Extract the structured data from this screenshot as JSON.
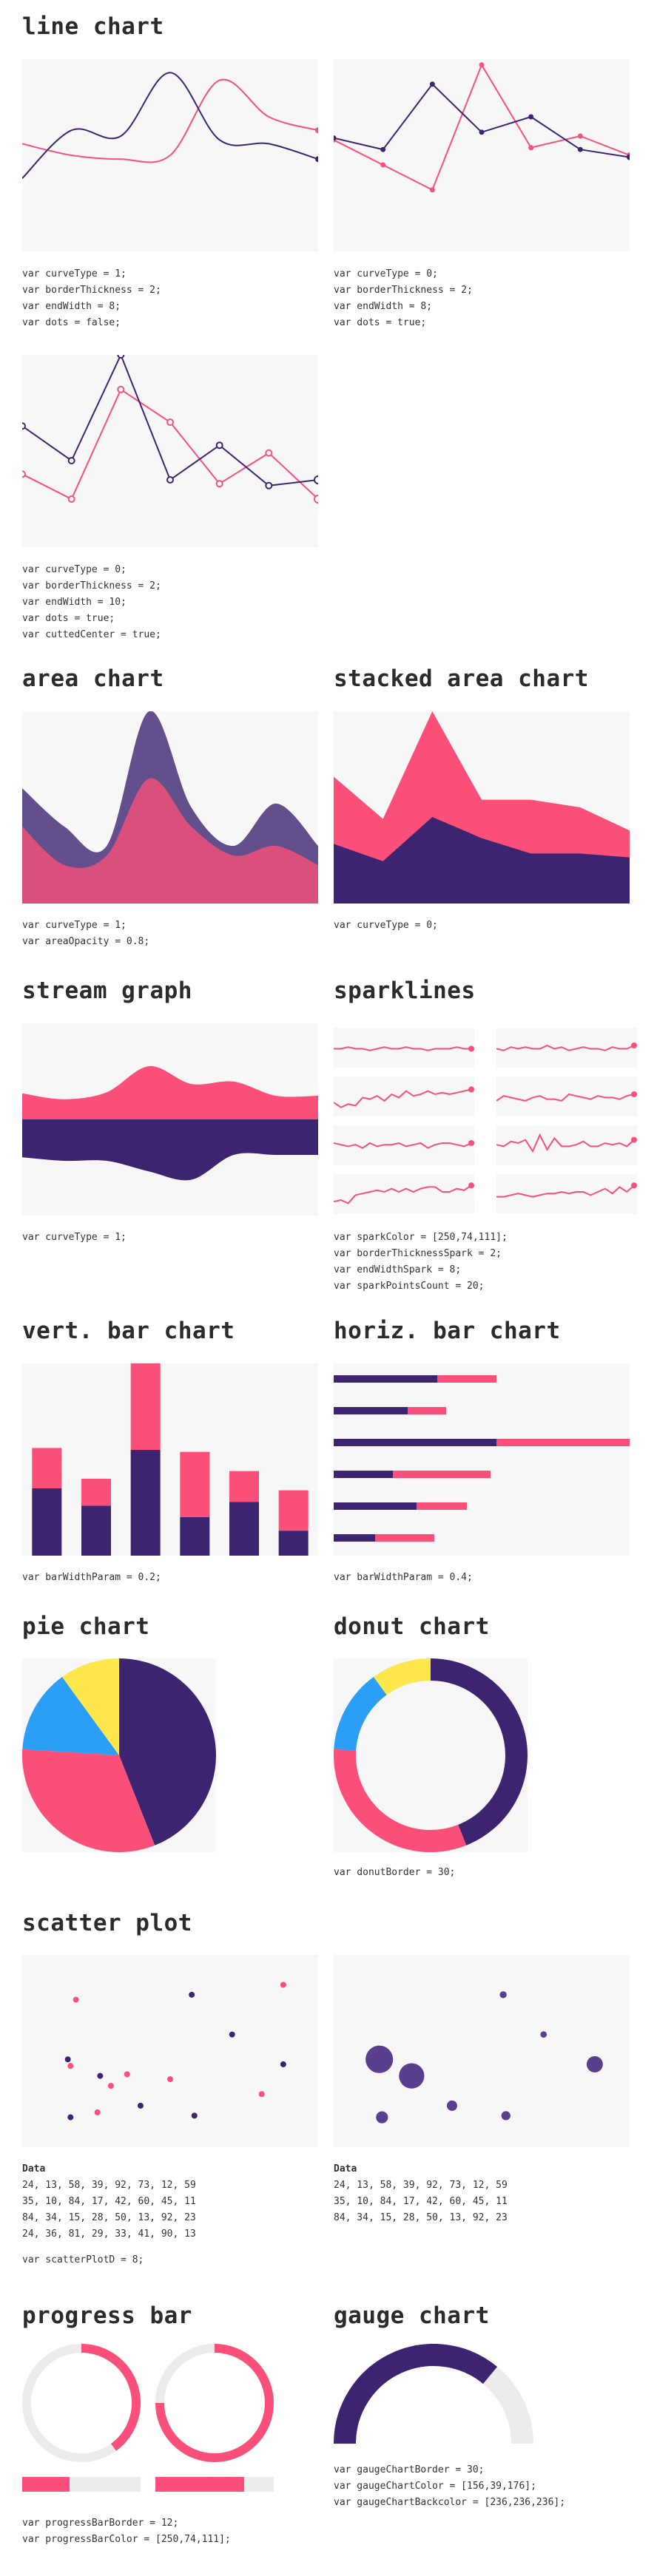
{
  "colors": {
    "pink": "#f94f78",
    "purple": "#3d2470",
    "panel": "#f7f7f7",
    "blue": "#2a9ff5",
    "yellow": "#fde74c",
    "gray": "#ececec",
    "purple_alpha": "#5b3f8f"
  },
  "sections": {
    "line_chart": {
      "title": "line chart",
      "code1": [
        "var curveType = 1;",
        "var borderThickness = 2;",
        "var endWidth = 8;",
        "var dots = false;"
      ],
      "code2": [
        "var curveType = 0;",
        "var borderThickness = 2;",
        "var endWidth = 8;",
        "var dots = true;"
      ],
      "code3": [
        "var curveType = 0;",
        "var borderThickness = 2;",
        "var endWidth = 10;",
        "var dots = true;",
        "var cuttedCenter = true;"
      ]
    },
    "area_chart": {
      "title": "area chart",
      "code": [
        "var curveType = 1;",
        "var areaOpacity = 0.8;"
      ]
    },
    "stacked_area_chart": {
      "title": "stacked area chart",
      "code": [
        "var curveType = 0;"
      ]
    },
    "stream_graph": {
      "title": "stream graph",
      "code": [
        "var curveType = 1;"
      ]
    },
    "sparklines": {
      "title": "sparklines",
      "code": [
        "var sparkColor = [250,74,111];",
        "var borderThicknessSpark = 2;",
        "var endWidthSpark = 8;",
        "var sparkPointsCount = 20;"
      ]
    },
    "vert_bar_chart": {
      "title": "vert. bar chart",
      "code": [
        "var barWidthParam = 0.2;"
      ]
    },
    "horiz_bar_chart": {
      "title": "horiz. bar chart",
      "code": [
        "var barWidthParam = 0.4;"
      ]
    },
    "pie_chart": {
      "title": "pie chart"
    },
    "donut_chart": {
      "title": "donut chart",
      "code": [
        "var donutBorder = 30;"
      ]
    },
    "scatter_plot": {
      "title": "scatter plot",
      "data_label": "Data",
      "data1": [
        "24, 13, 58, 39, 92, 73, 12, 59",
        "35, 10, 84, 17, 42, 60, 45, 11",
        "84, 34, 15, 28, 50, 13, 92, 23",
        "24, 36, 81, 29, 33, 41, 90, 13"
      ],
      "code1": [
        "var scatterPlotD = 8;"
      ],
      "data2": [
        "24, 13, 58, 39, 92, 73, 12, 59",
        "35, 10, 84, 17, 42, 60, 45, 11",
        "84, 34, 15, 28, 50, 13, 92, 23"
      ]
    },
    "progress_bar": {
      "title": "progress bar",
      "code": [
        "var progressBarBorder = 12;",
        "var progressBarColor = [250,74,111];"
      ]
    },
    "gauge_chart": {
      "title": "gauge chart",
      "code": [
        "var gaugeChartBorder = 30;",
        "var gaugeChartColor = [156,39,176];",
        "var gaugeChartBackcolor = [236,236,236];"
      ]
    }
  },
  "chart_data": [
    {
      "type": "line",
      "id": "line1",
      "x": [
        0,
        1,
        2,
        3,
        4,
        5,
        6
      ],
      "series": [
        {
          "values": [
            56,
            50,
            48,
            50,
            89,
            70,
            63
          ]
        },
        {
          "values": [
            38,
            63,
            60,
            93,
            58,
            56,
            48
          ]
        }
      ]
    },
    {
      "type": "line",
      "id": "line2",
      "x": [
        0,
        1,
        2,
        3,
        4,
        5,
        6
      ],
      "series": [
        {
          "values": [
            58,
            45,
            32,
            97,
            54,
            60,
            50
          ]
        },
        {
          "values": [
            59,
            53,
            87,
            62,
            70,
            53,
            49
          ]
        }
      ]
    },
    {
      "type": "line",
      "id": "line3",
      "x": [
        0,
        1,
        2,
        3,
        4,
        5,
        6
      ],
      "series": [
        {
          "values": [
            38,
            25,
            82,
            65,
            33,
            49,
            25
          ]
        },
        {
          "values": [
            63,
            45,
            100,
            35,
            53,
            32,
            35
          ]
        }
      ]
    },
    {
      "type": "area",
      "id": "area",
      "x": [
        0,
        1,
        2,
        3,
        4,
        5,
        6,
        7
      ],
      "series": [
        {
          "values": [
            40,
            20,
            25,
            65,
            40,
            25,
            30,
            20
          ]
        },
        {
          "values": [
            60,
            40,
            30,
            100,
            50,
            30,
            52,
            30
          ]
        }
      ]
    },
    {
      "type": "area",
      "id": "stacked",
      "x": [
        0,
        1,
        2,
        3,
        4,
        5,
        6
      ],
      "series": [
        {
          "values": [
            35,
            22,
            55,
            20,
            28,
            24,
            14
          ]
        },
        {
          "values": [
            31,
            22,
            45,
            34,
            26,
            26,
            24
          ]
        }
      ]
    },
    {
      "type": "area",
      "id": "stream",
      "x": [
        0,
        1,
        2,
        3,
        4,
        5,
        6,
        7
      ],
      "series": [
        {
          "values": [
            22,
            17,
            23,
            45,
            30,
            32,
            20,
            20
          ]
        },
        {
          "values": [
            32,
            35,
            35,
            44,
            51,
            30,
            30,
            30
          ]
        }
      ]
    },
    {
      "type": "line",
      "id": "sparklines",
      "series": [
        {
          "values": [
            8,
            8,
            9,
            8,
            8,
            7,
            8,
            9,
            8,
            8,
            9,
            8,
            8,
            7,
            8,
            8,
            8,
            9,
            8,
            8
          ]
        },
        {
          "values": [
            8,
            7,
            9,
            8,
            9,
            8,
            8,
            10,
            8,
            9,
            7,
            8,
            9,
            8,
            8,
            7,
            9,
            8,
            8,
            10
          ]
        },
        {
          "values": [
            5,
            2,
            4,
            3,
            8,
            7,
            9,
            6,
            10,
            8,
            12,
            9,
            10,
            12,
            10,
            11,
            10,
            11,
            12,
            13
          ]
        },
        {
          "values": [
            6,
            9,
            8,
            7,
            6,
            8,
            9,
            7,
            7,
            6,
            10,
            9,
            8,
            7,
            9,
            8,
            8,
            7,
            9,
            10
          ]
        },
        {
          "values": [
            10,
            9,
            8,
            9,
            7,
            10,
            8,
            9,
            9,
            10,
            8,
            9,
            10,
            7,
            9,
            10,
            10,
            9,
            8,
            10
          ]
        },
        {
          "values": [
            9,
            8,
            11,
            10,
            12,
            5,
            15,
            6,
            13,
            8,
            8,
            9,
            11,
            8,
            8,
            10,
            9,
            10,
            8,
            12
          ]
        },
        {
          "values": [
            4,
            5,
            3,
            8,
            9,
            10,
            11,
            10,
            12,
            10,
            12,
            10,
            12,
            13,
            13,
            10,
            10,
            12,
            11,
            14
          ]
        },
        {
          "values": [
            7,
            7,
            8,
            9,
            8,
            7,
            8,
            9,
            9,
            10,
            9,
            10,
            10,
            8,
            10,
            12,
            9,
            13,
            10,
            14
          ]
        }
      ]
    },
    {
      "type": "bar",
      "id": "vbar",
      "categories": [
        "1",
        "2",
        "3",
        "4",
        "5",
        "6"
      ],
      "series": [
        {
          "values": [
            35,
            26,
            55,
            20,
            28,
            13
          ]
        },
        {
          "values": [
            21,
            14,
            45,
            34,
            16,
            21
          ]
        }
      ],
      "ylim": [
        0,
        100
      ]
    },
    {
      "type": "bar",
      "id": "hbar",
      "categories": [
        "1",
        "2",
        "3",
        "4",
        "5",
        "6"
      ],
      "series": [
        {
          "values": [
            35,
            25,
            55,
            20,
            28,
            14
          ]
        },
        {
          "values": [
            20,
            13,
            45,
            33,
            17,
            20
          ]
        }
      ],
      "ylim": [
        0,
        100
      ]
    },
    {
      "type": "pie",
      "id": "pie",
      "values": [
        44,
        32,
        14,
        10
      ]
    },
    {
      "type": "pie",
      "id": "donut",
      "values": [
        44,
        32,
        14,
        10
      ]
    },
    {
      "type": "scatter",
      "id": "scatter1",
      "series": [
        {
          "points": [
            [
              24,
              35
            ],
            [
              13,
              10
            ],
            [
              58,
              84
            ],
            [
              39,
              17
            ],
            [
              92,
              42
            ],
            [
              73,
              60
            ],
            [
              12,
              45
            ],
            [
              59,
              11
            ]
          ]
        },
        {
          "points": [
            [
              84,
              24
            ],
            [
              34,
              36
            ],
            [
              15,
              81
            ],
            [
              28,
              29
            ],
            [
              50,
              33
            ],
            [
              13,
              41
            ],
            [
              92,
              90
            ],
            [
              23,
              13
            ]
          ]
        }
      ]
    },
    {
      "type": "scatter",
      "id": "scatter2",
      "series": [
        {
          "points": [
            [
              24,
              35,
              84
            ],
            [
              13,
              10,
              34
            ],
            [
              58,
              84,
              15
            ],
            [
              39,
              17,
              28
            ],
            [
              92,
              42,
              50
            ],
            [
              73,
              60,
              13
            ],
            [
              12,
              45,
              92
            ],
            [
              59,
              11,
              23
            ]
          ]
        }
      ]
    },
    {
      "type": "pie",
      "id": "progress1",
      "values": [
        40
      ]
    },
    {
      "type": "pie",
      "id": "progress2",
      "values": [
        75
      ]
    },
    {
      "type": "pie",
      "id": "gauge",
      "values": [
        72
      ]
    }
  ]
}
